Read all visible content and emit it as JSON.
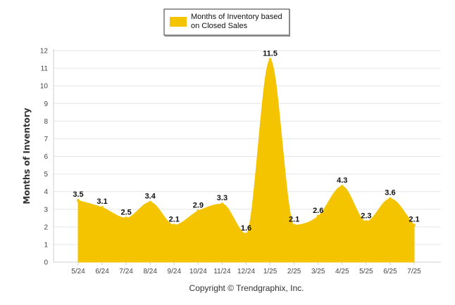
{
  "chart_data": {
    "type": "area",
    "categories": [
      "5/24",
      "6/24",
      "7/24",
      "8/24",
      "9/24",
      "10/24",
      "11/24",
      "12/24",
      "1/25",
      "2/25",
      "3/25",
      "4/25",
      "5/25",
      "6/25",
      "7/25"
    ],
    "series": [
      {
        "name": "Months of Inventory based on Closed Sales",
        "values": [
          3.5,
          3.1,
          2.5,
          3.4,
          2.1,
          2.9,
          3.3,
          1.6,
          11.5,
          2.1,
          2.6,
          4.3,
          2.3,
          3.6,
          2.1
        ],
        "color": "#F5C400"
      }
    ],
    "ylabel": "Months of Inventory",
    "xlabel": "",
    "ylim": [
      0,
      12
    ],
    "yticks": [
      "0",
      "1",
      "2",
      "3",
      "4",
      "5",
      "6",
      "7",
      "8",
      "9",
      "10",
      "11",
      "12"
    ],
    "grid": true,
    "legend_position": "top-center",
    "legend_lines": [
      "Months of Inventory based",
      "on Closed Sales"
    ]
  },
  "footer": "Copyright © Trendgraphix, Inc."
}
